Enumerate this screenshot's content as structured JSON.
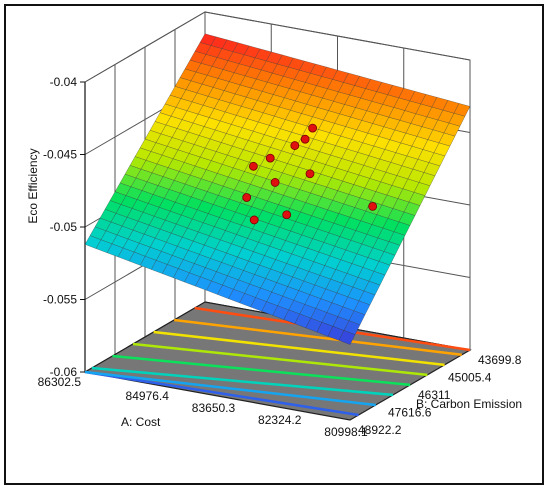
{
  "chart_data": {
    "type": "surface",
    "zlabel": "Eco Efficiency",
    "xlabel": "A: Cost",
    "ylabel": "B: Carbon Emission",
    "x_ticks": [
      "86302.5",
      "84976.4",
      "83650.3",
      "82324.2",
      "80998.1"
    ],
    "y_ticks": [
      "43699.8",
      "45005.4",
      "46311",
      "47616.6",
      "48922.2"
    ],
    "z_ticks": [
      "-0.04",
      "-0.045",
      "-0.05",
      "-0.055",
      "-0.06"
    ],
    "zlim": [
      -0.06,
      -0.04
    ],
    "surface_corners": {
      "cost_86302_5_emission_48922_2": -0.0512,
      "cost_80998_1_emission_48922_2": -0.0548,
      "cost_86302_5_emission_43699_8": -0.0415,
      "cost_80998_1_emission_43699_8": -0.0432
    },
    "design_points_count": 11,
    "colormap": [
      "#3b3bd8",
      "#1e90ff",
      "#00d0d0",
      "#00e060",
      "#b8e800",
      "#ffe000",
      "#ff8800",
      "#ff2020"
    ],
    "floor_color": "#777777"
  }
}
